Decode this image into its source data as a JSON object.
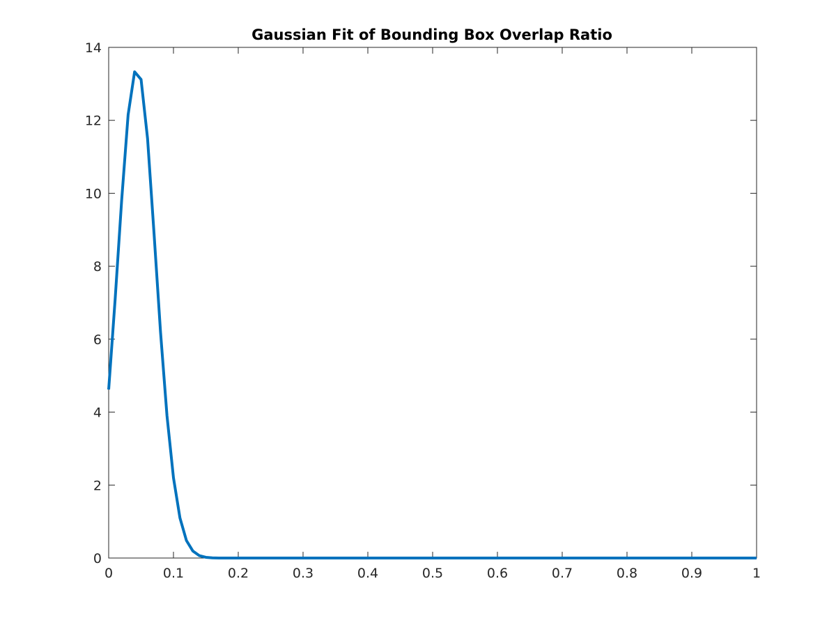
{
  "chart_data": {
    "type": "line",
    "title": "Gaussian Fit of Bounding Box Overlap Ratio",
    "xlabel": "",
    "ylabel": "",
    "xlim": [
      0,
      1
    ],
    "ylim": [
      0,
      14
    ],
    "grid": false,
    "legend": "none",
    "x_ticks": [
      0,
      0.1,
      0.2,
      0.3,
      0.4,
      0.5,
      0.6,
      0.7,
      0.8,
      0.9,
      1
    ],
    "x_tick_labels": [
      "0",
      "0.1",
      "0.2",
      "0.3",
      "0.4",
      "0.5",
      "0.6",
      "0.7",
      "0.8",
      "0.9",
      "1"
    ],
    "y_ticks": [
      0,
      2,
      4,
      6,
      8,
      10,
      12,
      14
    ],
    "y_tick_labels": [
      "0",
      "2",
      "4",
      "6",
      "8",
      "10",
      "12",
      "14"
    ],
    "series": [
      {
        "color": "#0072BD",
        "x": [
          0,
          0.01,
          0.02,
          0.03,
          0.04,
          0.05,
          0.06,
          0.07,
          0.08,
          0.09,
          0.1,
          0.11,
          0.12,
          0.13,
          0.14,
          0.15,
          0.16,
          0.17,
          0.18,
          0.19,
          0.2,
          0.25,
          0.3,
          0.35,
          0.4,
          0.45,
          0.5,
          0.55,
          0.6,
          0.65,
          0.7,
          0.75,
          0.8,
          0.85,
          0.9,
          0.95,
          1
        ],
        "y": [
          4.62,
          7.1,
          9.8,
          12.15,
          13.33,
          13.12,
          11.5,
          8.9,
          6.2,
          3.9,
          2.2,
          1.1,
          0.48,
          0.19,
          0.065,
          0.02,
          0.005,
          0.001,
          0,
          0,
          0,
          0,
          0,
          0,
          0,
          0,
          0,
          0,
          0,
          0,
          0,
          0,
          0,
          0,
          0,
          0,
          0
        ]
      }
    ]
  }
}
